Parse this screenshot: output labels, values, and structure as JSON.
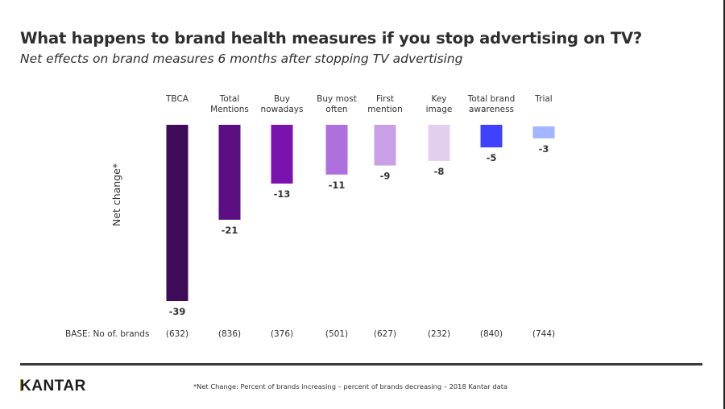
{
  "header": {
    "title": "What happens to brand health measures if you stop advertising on TV?",
    "subtitle": "Net effects on brand measures 6 months after stopping TV advertising"
  },
  "chart_data": {
    "type": "bar",
    "orientation": "vertical-downward",
    "ylabel": "Net change*",
    "xlabel": "",
    "ylim": [
      -39,
      0
    ],
    "grid": false,
    "categories": [
      [
        "TBCA"
      ],
      [
        "Total",
        "Mentions"
      ],
      [
        "Buy",
        "nowadays"
      ],
      [
        "Buy most",
        "often"
      ],
      [
        "First",
        "mention"
      ],
      [
        "Key",
        "image"
      ],
      [
        "Total brand",
        "awareness"
      ],
      [
        "Trial"
      ]
    ],
    "category_names": [
      "TBCA",
      "Total Mentions",
      "Buy nowadays",
      "Buy most often",
      "First mention",
      "Key image",
      "Total brand awareness",
      "Trial"
    ],
    "values": [
      -39,
      -21,
      -13,
      -11,
      -9,
      -8,
      -5,
      -3
    ],
    "value_labels": [
      "-39",
      "-21",
      "-13",
      "-11",
      "-9",
      "-8",
      "-5",
      "-3"
    ],
    "colors": [
      "#3d0b57",
      "#5c0f82",
      "#7a12b0",
      "#ae70dc",
      "#c9a0e6",
      "#e2cff0",
      "#4040ff",
      "#a3b6ff"
    ],
    "base": {
      "label": "BASE: No of. brands",
      "values": [
        "(632)",
        "(836)",
        "(376)",
        "(501)",
        "(627)",
        "(232)",
        "(840)",
        "(744)"
      ]
    }
  },
  "footer": {
    "logo": "ANTAR",
    "logo_initial": "K",
    "footnote": "*Net Change: Percent of brands increasing – percent of brands decreasing – 2018 Kantar data"
  }
}
